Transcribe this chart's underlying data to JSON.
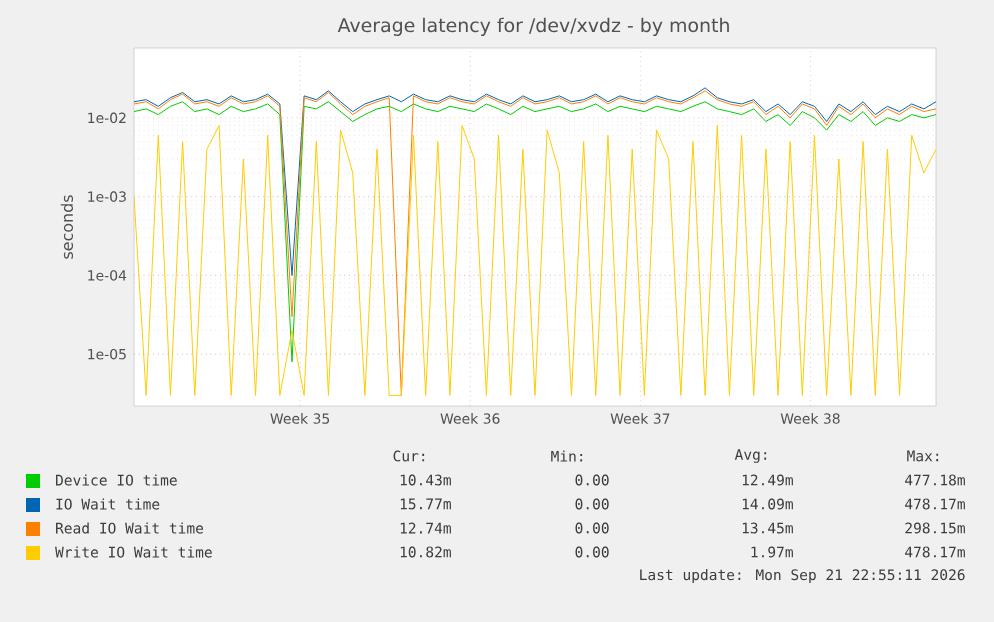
{
  "chart_data": {
    "type": "line",
    "title": "Average latency for /dev/xvdz - by month",
    "ylabel": "seconds",
    "x": [
      "2026-08-17T04:00",
      "2026-08-17T16:00",
      "2026-08-18T04:00",
      "2026-08-18T16:00",
      "2026-08-19T04:00",
      "2026-08-19T16:00",
      "2026-08-20T04:00",
      "2026-08-20T16:00",
      "2026-08-21T04:00",
      "2026-08-21T16:00",
      "2026-08-22T04:00",
      "2026-08-22T16:00",
      "2026-08-23T04:00",
      "2026-08-23T16:00",
      "2026-08-24T04:00",
      "2026-08-24T16:00",
      "2026-08-25T04:00",
      "2026-08-25T16:00",
      "2026-08-26T04:00",
      "2026-08-26T16:00",
      "2026-08-27T04:00",
      "2026-08-27T16:00",
      "2026-08-28T04:00",
      "2026-08-28T16:00",
      "2026-08-29T04:00",
      "2026-08-29T16:00",
      "2026-08-30T04:00",
      "2026-08-30T16:00",
      "2026-08-31T04:00",
      "2026-08-31T16:00",
      "2026-09-01T04:00",
      "2026-09-01T16:00",
      "2026-09-02T04:00",
      "2026-09-02T16:00",
      "2026-09-03T04:00",
      "2026-09-03T16:00",
      "2026-09-04T04:00",
      "2026-09-04T16:00",
      "2026-09-05T04:00",
      "2026-09-05T16:00",
      "2026-09-06T04:00",
      "2026-09-06T16:00",
      "2026-09-07T04:00",
      "2026-09-07T16:00",
      "2026-09-08T04:00",
      "2026-09-08T16:00",
      "2026-09-09T04:00",
      "2026-09-09T16:00",
      "2026-09-10T04:00",
      "2026-09-10T16:00",
      "2026-09-11T04:00",
      "2026-09-11T16:00",
      "2026-09-12T04:00",
      "2026-09-12T16:00",
      "2026-09-13T04:00",
      "2026-09-13T16:00",
      "2026-09-14T04:00",
      "2026-09-14T16:00",
      "2026-09-15T04:00",
      "2026-09-15T16:00",
      "2026-09-16T04:00",
      "2026-09-16T16:00",
      "2026-09-17T04:00",
      "2026-09-17T16:00",
      "2026-09-18T04:00",
      "2026-09-18T16:00",
      "2026-09-19T04:00"
    ],
    "series": [
      {
        "name": "Device IO time",
        "color": "#00cc00",
        "values": [
          0.012,
          0.013,
          0.011,
          0.014,
          0.016,
          0.012,
          0.013,
          0.011,
          0.014,
          0.012,
          0.013,
          0.015,
          0.011,
          8e-06,
          0.014,
          0.013,
          0.016,
          0.012,
          0.009,
          0.011,
          0.013,
          0.014,
          0.012,
          0.015,
          0.013,
          0.012,
          0.014,
          0.013,
          0.012,
          0.015,
          0.013,
          0.011,
          0.014,
          0.012,
          0.013,
          0.014,
          0.012,
          0.013,
          0.015,
          0.012,
          0.014,
          0.013,
          0.012,
          0.014,
          0.013,
          0.012,
          0.014,
          0.016,
          0.013,
          0.012,
          0.011,
          0.013,
          0.009,
          0.011,
          0.008,
          0.012,
          0.01,
          0.007,
          0.011,
          0.009,
          0.012,
          0.008,
          0.01,
          0.009,
          0.011,
          0.01,
          0.011
        ]
      },
      {
        "name": "IO Wait time",
        "color": "#0066b3",
        "values": [
          0.016,
          0.017,
          0.014,
          0.018,
          0.021,
          0.016,
          0.017,
          0.015,
          0.019,
          0.016,
          0.017,
          0.02,
          0.015,
          0.0001,
          0.019,
          0.017,
          0.022,
          0.016,
          0.012,
          0.015,
          0.017,
          0.019,
          0.016,
          0.02,
          0.017,
          0.016,
          0.019,
          0.017,
          0.016,
          0.02,
          0.017,
          0.015,
          0.019,
          0.016,
          0.017,
          0.019,
          0.016,
          0.017,
          0.02,
          0.016,
          0.019,
          0.017,
          0.016,
          0.019,
          0.017,
          0.016,
          0.019,
          0.024,
          0.018,
          0.016,
          0.015,
          0.017,
          0.012,
          0.015,
          0.011,
          0.016,
          0.014,
          0.009,
          0.015,
          0.012,
          0.016,
          0.011,
          0.014,
          0.012,
          0.015,
          0.013,
          0.016
        ]
      },
      {
        "name": "Read IO Wait time",
        "color": "#ff8000",
        "values": [
          0.015,
          0.016,
          0.013,
          0.017,
          0.02,
          0.015,
          0.016,
          0.014,
          0.018,
          0.015,
          0.016,
          0.019,
          0.014,
          3e-05,
          0.018,
          0.016,
          0.021,
          0.015,
          0.011,
          0.014,
          0.016,
          0.018,
          3e-06,
          0.019,
          0.016,
          0.015,
          0.018,
          0.016,
          0.015,
          0.019,
          0.016,
          0.014,
          0.018,
          0.015,
          0.016,
          0.018,
          0.015,
          0.016,
          0.019,
          0.015,
          0.018,
          0.016,
          0.015,
          0.018,
          0.016,
          0.015,
          0.018,
          0.022,
          0.017,
          0.015,
          0.014,
          0.016,
          0.011,
          0.014,
          0.01,
          0.015,
          0.013,
          0.008,
          0.014,
          0.011,
          0.015,
          0.01,
          0.013,
          0.011,
          0.014,
          0.012,
          0.013
        ]
      },
      {
        "name": "Write IO Wait time",
        "color": "#ffcc00",
        "values": [
          0.001,
          3e-06,
          0.006,
          3e-06,
          0.005,
          3e-06,
          0.004,
          0.008,
          3e-06,
          0.003,
          3e-06,
          0.006,
          3e-06,
          2e-05,
          3e-06,
          0.005,
          3e-06,
          0.007,
          0.002,
          3e-06,
          0.004,
          3e-06,
          3e-06,
          0.006,
          3e-06,
          0.005,
          3e-06,
          0.008,
          0.003,
          3e-06,
          0.006,
          3e-06,
          0.004,
          3e-06,
          0.007,
          0.002,
          3e-06,
          0.005,
          3e-06,
          0.006,
          3e-06,
          0.004,
          3e-06,
          0.007,
          0.003,
          3e-06,
          0.005,
          3e-06,
          0.008,
          3e-06,
          0.006,
          3e-06,
          0.004,
          3e-06,
          0.005,
          3e-06,
          0.006,
          3e-06,
          0.003,
          3e-06,
          0.005,
          3e-06,
          0.004,
          3e-06,
          0.006,
          0.002,
          0.004
        ]
      }
    ],
    "log": "y",
    "xlim": [
      "2026-08-17T04:00",
      "2026-09-19T04:00"
    ],
    "ylim": [
      2.2e-06,
      0.077
    ],
    "xticks": [
      {
        "value": "2026-08-24",
        "label": "Week 35"
      },
      {
        "value": "2026-08-31",
        "label": "Week 36"
      },
      {
        "value": "2026-09-07",
        "label": "Week 37"
      },
      {
        "value": "2026-09-14",
        "label": "Week 38"
      }
    ],
    "yticks": [
      {
        "value": 1e-05,
        "label": "1e-05"
      },
      {
        "value": 0.0001,
        "label": "1e-04"
      },
      {
        "value": 0.001,
        "label": "1e-03"
      },
      {
        "value": 0.01,
        "label": "1e-02"
      }
    ],
    "grid": true,
    "legend": "bottom",
    "marker": "none",
    "line_style": "solid",
    "annotations": [
      "Cur:",
      "Min:",
      "Avg:",
      "Max:",
      "10.43m",
      "0.00",
      "12.49m",
      "477.18m",
      "15.77m",
      "0.00",
      "14.09m",
      "478.17m",
      "12.74m",
      "0.00",
      "13.45m",
      "298.15m",
      "10.82m",
      "0.00",
      "1.97m",
      "478.17m",
      "Last update: Mon Sep 21 22:55:11 2026"
    ]
  }
}
